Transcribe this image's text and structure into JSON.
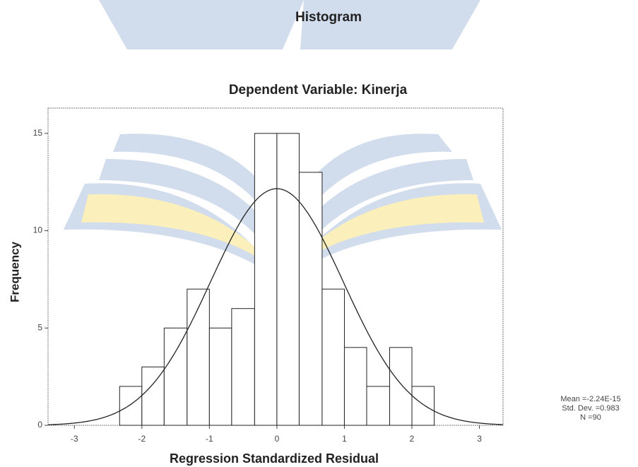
{
  "chart_data": {
    "type": "histogram",
    "title": "Histogram",
    "subtitle": "Dependent Variable: Kinerja",
    "x_label": "Regression Standardized Residual",
    "y_label": "Frequency",
    "bins": [
      -2.33,
      -2,
      -1.67,
      -1.33,
      -1,
      -0.67,
      -0.33,
      0,
      0.33,
      0.67,
      1,
      1.33,
      1.67,
      2,
      2.33
    ],
    "values": [
      2,
      3,
      5,
      7,
      5,
      6,
      15,
      15,
      13,
      7,
      4,
      2,
      4,
      2
    ],
    "xlim": [
      -3.39,
      3.35
    ],
    "xticks": [
      -3,
      -2,
      -1,
      0,
      1,
      2,
      3
    ],
    "ylim": [
      0,
      16.3
    ],
    "yticks": [
      0,
      5,
      10,
      15
    ],
    "stats": {
      "mean": {
        "value": -2.24e-15,
        "label": "Mean =-2.24E-15"
      },
      "std_dev": {
        "value": 0.983,
        "label": "Std. Dev. =0.983"
      },
      "n": {
        "value": 90,
        "label": "N =90"
      }
    },
    "color": "#ffffff",
    "edge_color": "#222222"
  }
}
